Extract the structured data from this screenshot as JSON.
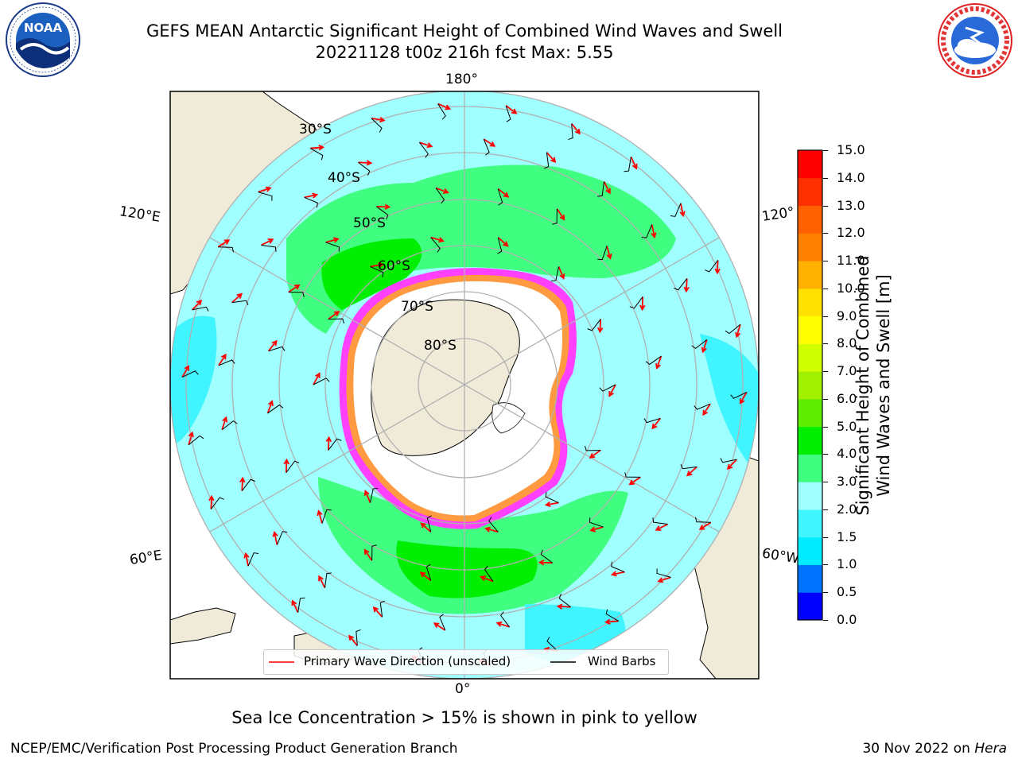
{
  "title": {
    "line1": "GEFS MEAN Antarctic Significant Height of Combined Wind Waves and Swell",
    "line2": "20221128 t00z 216h fcst   Max: 5.55"
  },
  "map": {
    "projection": "south-polar-stereographic",
    "lon_labels": [
      "180°",
      "120°E",
      "120°",
      "60°E",
      "60°W",
      "0°"
    ],
    "lat_labels": [
      "30°S",
      "40°S",
      "50°S",
      "60°S",
      "70°S",
      "80°S"
    ],
    "colors": {
      "land": "#efebd8",
      "ice": "#ffffff",
      "ice_edge": [
        "#ff40ff",
        "#ff9a40",
        "#ffe080"
      ],
      "grid": "#b0b0b0",
      "arrow": "#ff0000",
      "barb": "#000000"
    }
  },
  "legend": {
    "wave_label": "Primary Wave Direction (unscaled)",
    "wind_label": "Wind Barbs"
  },
  "colorbar": {
    "label_line1": "Significant Height of Combined",
    "label_line2": "Wind Waves and Swell [m]",
    "ticks": [
      "15.0",
      "14.0",
      "13.0",
      "12.0",
      "11.0",
      "10.0",
      "9.0",
      "8.0",
      "7.0",
      "6.0",
      "5.0",
      "4.0",
      "3.0",
      "2.0",
      "1.5",
      "1.0",
      "0.5",
      "0.0"
    ],
    "colors": [
      "#0000ff",
      "#0073ff",
      "#00ecff",
      "#40f5ff",
      "#a0ffff",
      "#40ff80",
      "#00ee00",
      "#60ee00",
      "#a0f000",
      "#d0ff00",
      "#ffff00",
      "#ffe000",
      "#ffb000",
      "#ff8000",
      "#ff6000",
      "#ff3000",
      "#ff0000"
    ]
  },
  "caption": "Sea Ice Concentration > 15% is shown in pink to yellow",
  "footer": {
    "left": "NCEP/EMC/Verification Post Processing Product Generation Branch",
    "right_prefix": "30 Nov 2022 on ",
    "right_host": "Hera"
  },
  "logos": {
    "noaa": "NOAA",
    "nws": "NATIONAL WEATHER SERVICE"
  }
}
